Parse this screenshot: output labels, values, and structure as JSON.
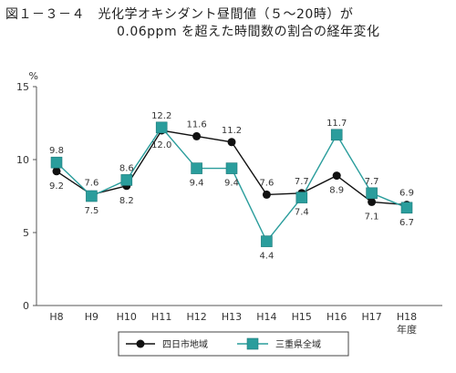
{
  "figure": {
    "title_line1": "図１－３－４　光化学オキシダント昼間値（５～20時）が",
    "title_line2": "0.06ppm を超えた時間数の割合の経年変化"
  },
  "chart_data": {
    "type": "line",
    "title": "図１－３－４ 光化学オキシダント昼間値（５～20時）が 0.06ppm を超えた時間数の割合の経年変化",
    "ylabel": "%",
    "xlabel": "年度",
    "ylim": [
      0,
      15
    ],
    "yticks": [
      0,
      5,
      10,
      15
    ],
    "grid": false,
    "legend_position": "bottom",
    "categories": [
      "H8",
      "H9",
      "H10",
      "H11",
      "H12",
      "H13",
      "H14",
      "H15",
      "H16",
      "H17",
      "H18"
    ],
    "series": [
      {
        "name": "四日市地域",
        "marker": "circle",
        "color": "#111111",
        "values": [
          9.2,
          7.6,
          8.2,
          12.0,
          11.6,
          11.2,
          7.6,
          7.7,
          8.9,
          7.1,
          6.9
        ]
      },
      {
        "name": "三重県全域",
        "marker": "square",
        "color": "#2a9d9c",
        "values": [
          9.8,
          7.5,
          8.6,
          12.2,
          9.4,
          9.4,
          4.4,
          7.4,
          11.7,
          7.7,
          6.7
        ]
      }
    ]
  }
}
